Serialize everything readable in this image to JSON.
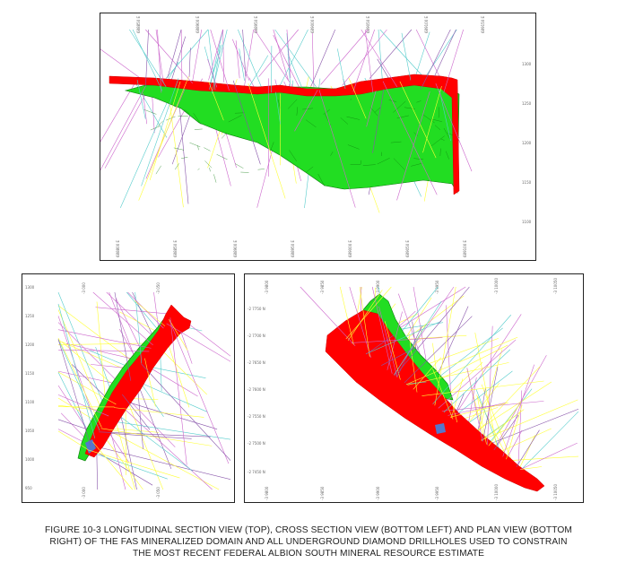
{
  "figure": {
    "caption_lines": [
      "FIGURE 10-3  LONGITUDINAL SECTION VIEW (TOP), CROSS SECTION VIEW (BOTTOM LEFT) AND PLAN VIEW (BOTTOM",
      "RIGHT) OF THE FAS MINERALIZED DOMAIN AND ALL UNDERGROUND DIAMOND DRILLHOLES USED TO CONSTRAIN",
      "THE MOST RECENT FEDERAL ALBION SOUTH MINERAL RESOURCE ESTIMATE"
    ]
  },
  "colors": {
    "domain_red": "#ff0000",
    "domain_green": "#22dd22",
    "domain_green_dark": "#0a7a0a",
    "drill_yellow": "#ffff33",
    "drill_magenta": "#cc66cc",
    "drill_cyan": "#55cccc",
    "drill_purple": "#8855aa",
    "solid_blue": "#5577cc"
  },
  "panels": {
    "top": {
      "view": "longitudinal section"
    },
    "bottom_left": {
      "view": "cross section"
    },
    "bottom_right": {
      "view": "plan view"
    }
  }
}
